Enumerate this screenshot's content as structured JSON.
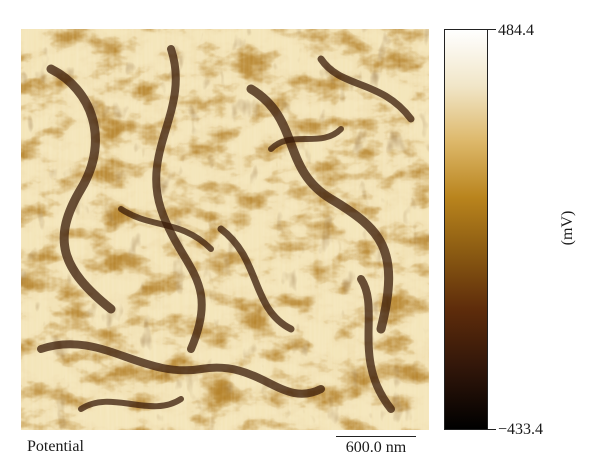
{
  "figure": {
    "colorbar": {
      "max_label": "484.4",
      "min_label": "−433.4",
      "unit_label": "(mV)",
      "colors": [
        "#ffffff",
        "#ddb86a",
        "#b9841d",
        "#8a5a12",
        "#5e2c0b",
        "#000000"
      ]
    },
    "caption": "Potential",
    "scale_bar_label": "600.0 nm"
  }
}
